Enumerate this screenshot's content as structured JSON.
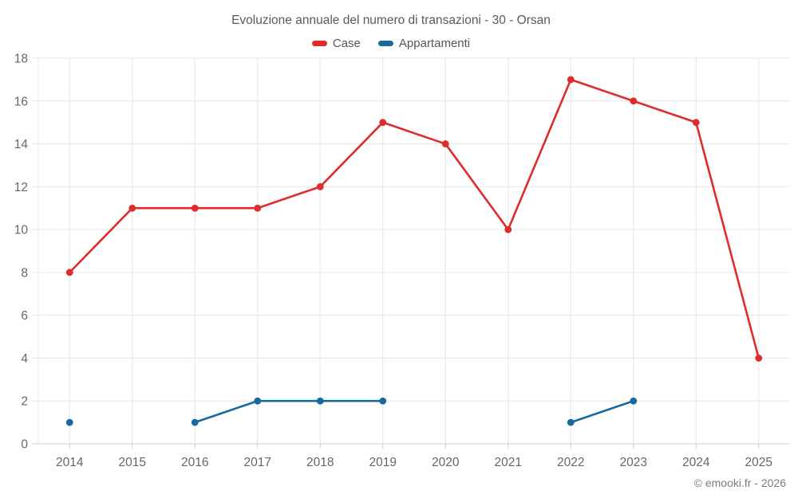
{
  "page": {
    "attribution": "© emooki.fr - 2026"
  },
  "chart_data": {
    "type": "line",
    "title": "Evoluzione annuale del numero di transazioni - 30 - Orsan",
    "categories": [
      "2014",
      "2015",
      "2016",
      "2017",
      "2018",
      "2019",
      "2020",
      "2021",
      "2022",
      "2023",
      "2024",
      "2025"
    ],
    "yticks": [
      0,
      2,
      4,
      6,
      8,
      10,
      12,
      14,
      16,
      18
    ],
    "ylim": [
      0,
      18
    ],
    "xlabel": "",
    "ylabel": "",
    "grid": true,
    "legend_position": "top",
    "series": [
      {
        "name": "Case",
        "color": "#df2b2b",
        "values": [
          8,
          11,
          11,
          11,
          12,
          15,
          14,
          10,
          17,
          16,
          15,
          4
        ]
      },
      {
        "name": "Appartamenti",
        "color": "#17699e",
        "values": [
          1,
          null,
          1,
          2,
          2,
          2,
          null,
          null,
          1,
          2,
          null,
          null
        ]
      }
    ],
    "colors": {
      "gridline": "#e6e6e6",
      "axis_line": "#cccccc",
      "title_text": "#595959",
      "tick_text": "#666666"
    }
  }
}
